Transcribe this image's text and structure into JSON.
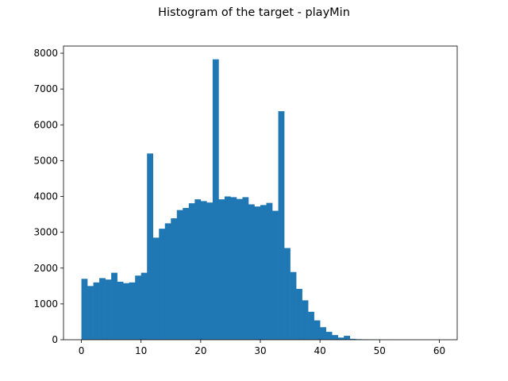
{
  "chart_data": {
    "type": "bar",
    "title": "Histogram of the target - playMin",
    "xlabel": "",
    "ylabel": "",
    "xlim": [
      -3,
      63
    ],
    "ylim": [
      0,
      8200
    ],
    "xticks": [
      0,
      10,
      20,
      30,
      40,
      50,
      60
    ],
    "yticks": [
      0,
      1000,
      2000,
      3000,
      4000,
      5000,
      6000,
      7000,
      8000
    ],
    "bar_color": "#1f77b4",
    "grid": false,
    "legend": "none",
    "bins": {
      "start": 0,
      "width": 1.0,
      "counts": [
        1700,
        1500,
        1600,
        1720,
        1680,
        1870,
        1620,
        1580,
        1600,
        1790,
        1870,
        5200,
        2850,
        3100,
        3250,
        3390,
        3620,
        3680,
        3810,
        3920,
        3870,
        3830,
        7830,
        3920,
        4000,
        3980,
        3930,
        3980,
        3780,
        3720,
        3760,
        3820,
        3600,
        6380,
        2560,
        1890,
        1420,
        1100,
        780,
        540,
        350,
        220,
        130,
        60,
        110,
        25,
        15,
        12,
        8,
        6,
        4,
        3,
        2,
        2,
        1,
        1,
        1,
        1,
        1,
        1
      ]
    }
  }
}
